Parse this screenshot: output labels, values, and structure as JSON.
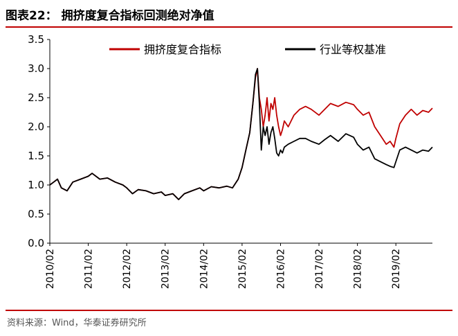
{
  "header": {
    "title": "图表22：  拥挤度复合指标回测绝对净值"
  },
  "footer": {
    "source": "资料来源：Wind，华泰证券研究所"
  },
  "colors": {
    "accent": "#c00000",
    "series_red": "#c00000",
    "series_black": "#000000"
  },
  "chart_data": {
    "type": "line",
    "title": "",
    "xlabel": "",
    "ylabel": "",
    "ylim": [
      0.0,
      3.5
    ],
    "yticks": [
      0.0,
      0.5,
      1.0,
      1.5,
      2.0,
      2.5,
      3.0,
      3.5
    ],
    "ytick_labels": [
      "0.0",
      "0.5",
      "1.0",
      "1.5",
      "2.0",
      "2.5",
      "3.0",
      "3.5"
    ],
    "xlim": [
      2010.0,
      2019.95
    ],
    "xticks": [
      2010,
      2011,
      2012,
      2013,
      2014,
      2015,
      2016,
      2017,
      2018,
      2019
    ],
    "xtick_labels": [
      "2010/02",
      "2011/02",
      "2012/02",
      "2013/02",
      "2014/02",
      "2015/02",
      "2016/02",
      "2017/02",
      "2018/02",
      "2019/02"
    ],
    "grid": false,
    "legend_position": "top",
    "series": [
      {
        "name": "拥挤度复合指标",
        "color": "#c00000",
        "x": [
          2010.0,
          2010.1,
          2010.2,
          2010.3,
          2010.45,
          2010.6,
          2010.8,
          2011.0,
          2011.1,
          2011.3,
          2011.5,
          2011.7,
          2011.9,
          2012.0,
          2012.15,
          2012.3,
          2012.5,
          2012.7,
          2012.9,
          2013.0,
          2013.2,
          2013.35,
          2013.5,
          2013.7,
          2013.9,
          2014.0,
          2014.2,
          2014.4,
          2014.6,
          2014.75,
          2014.9,
          2015.0,
          2015.1,
          2015.2,
          2015.28,
          2015.35,
          2015.4,
          2015.45,
          2015.5,
          2015.55,
          2015.6,
          2015.65,
          2015.7,
          2015.75,
          2015.8,
          2015.85,
          2015.9,
          2015.95,
          2016.0,
          2016.05,
          2016.1,
          2016.2,
          2016.35,
          2016.5,
          2016.65,
          2016.8,
          2017.0,
          2017.15,
          2017.3,
          2017.5,
          2017.7,
          2017.9,
          2018.0,
          2018.15,
          2018.3,
          2018.45,
          2018.6,
          2018.75,
          2018.85,
          2018.95,
          2019.0,
          2019.1,
          2019.25,
          2019.4,
          2019.55,
          2019.7,
          2019.85,
          2019.95
        ],
        "y": [
          1.0,
          1.05,
          1.1,
          0.95,
          0.9,
          1.05,
          1.1,
          1.15,
          1.2,
          1.1,
          1.12,
          1.05,
          1.0,
          0.95,
          0.85,
          0.92,
          0.9,
          0.85,
          0.88,
          0.82,
          0.85,
          0.75,
          0.85,
          0.9,
          0.95,
          0.9,
          0.97,
          0.95,
          0.98,
          0.95,
          1.1,
          1.3,
          1.6,
          1.9,
          2.4,
          2.85,
          3.0,
          2.5,
          2.3,
          2.0,
          2.2,
          2.5,
          2.1,
          2.4,
          2.3,
          2.5,
          2.2,
          2.0,
          1.85,
          1.95,
          2.1,
          2.0,
          2.2,
          2.3,
          2.35,
          2.3,
          2.2,
          2.3,
          2.4,
          2.35,
          2.42,
          2.38,
          2.3,
          2.2,
          2.25,
          2.0,
          1.85,
          1.7,
          1.75,
          1.65,
          1.8,
          2.05,
          2.2,
          2.3,
          2.2,
          2.28,
          2.25,
          2.32
        ]
      },
      {
        "name": "行业等权基准",
        "color": "#000000",
        "x": [
          2010.0,
          2010.1,
          2010.2,
          2010.3,
          2010.45,
          2010.6,
          2010.8,
          2011.0,
          2011.1,
          2011.3,
          2011.5,
          2011.7,
          2011.9,
          2012.0,
          2012.15,
          2012.3,
          2012.5,
          2012.7,
          2012.9,
          2013.0,
          2013.2,
          2013.35,
          2013.5,
          2013.7,
          2013.9,
          2014.0,
          2014.2,
          2014.4,
          2014.6,
          2014.75,
          2014.9,
          2015.0,
          2015.1,
          2015.2,
          2015.28,
          2015.35,
          2015.4,
          2015.45,
          2015.5,
          2015.55,
          2015.6,
          2015.65,
          2015.7,
          2015.75,
          2015.8,
          2015.85,
          2015.9,
          2015.95,
          2016.0,
          2016.05,
          2016.1,
          2016.2,
          2016.35,
          2016.5,
          2016.65,
          2016.8,
          2017.0,
          2017.15,
          2017.3,
          2017.5,
          2017.7,
          2017.9,
          2018.0,
          2018.15,
          2018.3,
          2018.45,
          2018.6,
          2018.75,
          2018.85,
          2018.95,
          2019.0,
          2019.1,
          2019.25,
          2019.4,
          2019.55,
          2019.7,
          2019.85,
          2019.95
        ],
        "y": [
          1.0,
          1.05,
          1.1,
          0.95,
          0.9,
          1.05,
          1.1,
          1.15,
          1.2,
          1.1,
          1.12,
          1.05,
          1.0,
          0.95,
          0.85,
          0.92,
          0.9,
          0.85,
          0.88,
          0.82,
          0.85,
          0.75,
          0.85,
          0.9,
          0.95,
          0.9,
          0.97,
          0.95,
          0.98,
          0.95,
          1.1,
          1.3,
          1.6,
          1.9,
          2.4,
          2.9,
          3.0,
          2.4,
          1.6,
          2.0,
          1.85,
          2.0,
          1.7,
          1.9,
          2.0,
          1.8,
          1.55,
          1.5,
          1.6,
          1.55,
          1.65,
          1.7,
          1.75,
          1.8,
          1.8,
          1.75,
          1.7,
          1.78,
          1.85,
          1.75,
          1.88,
          1.82,
          1.7,
          1.6,
          1.65,
          1.45,
          1.4,
          1.35,
          1.32,
          1.3,
          1.4,
          1.6,
          1.65,
          1.6,
          1.55,
          1.6,
          1.58,
          1.65
        ]
      }
    ]
  }
}
